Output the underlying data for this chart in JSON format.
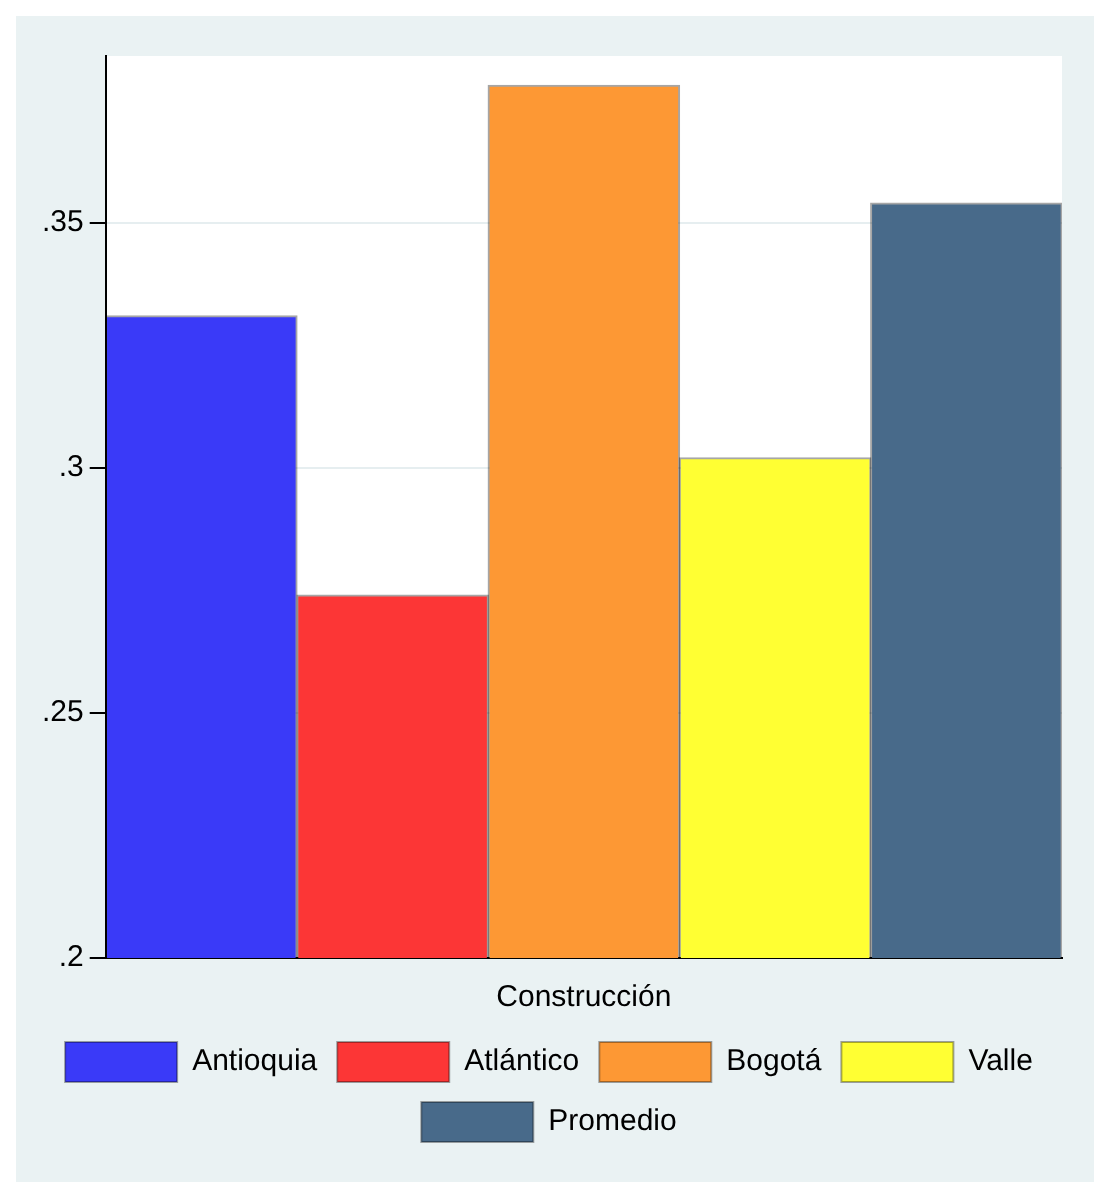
{
  "chart_data": {
    "type": "bar",
    "categories": [
      "Construcción"
    ],
    "series": [
      {
        "name": "Antioquia",
        "color": "#3a3af8",
        "values": [
          0.331
        ]
      },
      {
        "name": "Atlántico",
        "color": "#fc3636",
        "values": [
          0.274
        ]
      },
      {
        "name": "Bogotá",
        "color": "#fd9834",
        "values": [
          0.378
        ]
      },
      {
        "name": "Valle",
        "color": "#ffff33",
        "values": [
          0.302
        ]
      },
      {
        "name": "Promedio",
        "color": "#486a8a",
        "values": [
          0.354
        ]
      }
    ],
    "ylim": [
      0.2,
      0.384
    ],
    "yticks": [
      {
        "value": 0.2,
        "label": ".2"
      },
      {
        "value": 0.25,
        "label": ".25"
      },
      {
        "value": 0.3,
        "label": ".3"
      },
      {
        "value": 0.35,
        "label": ".35"
      }
    ],
    "grid": "y",
    "legend": "bottom"
  }
}
